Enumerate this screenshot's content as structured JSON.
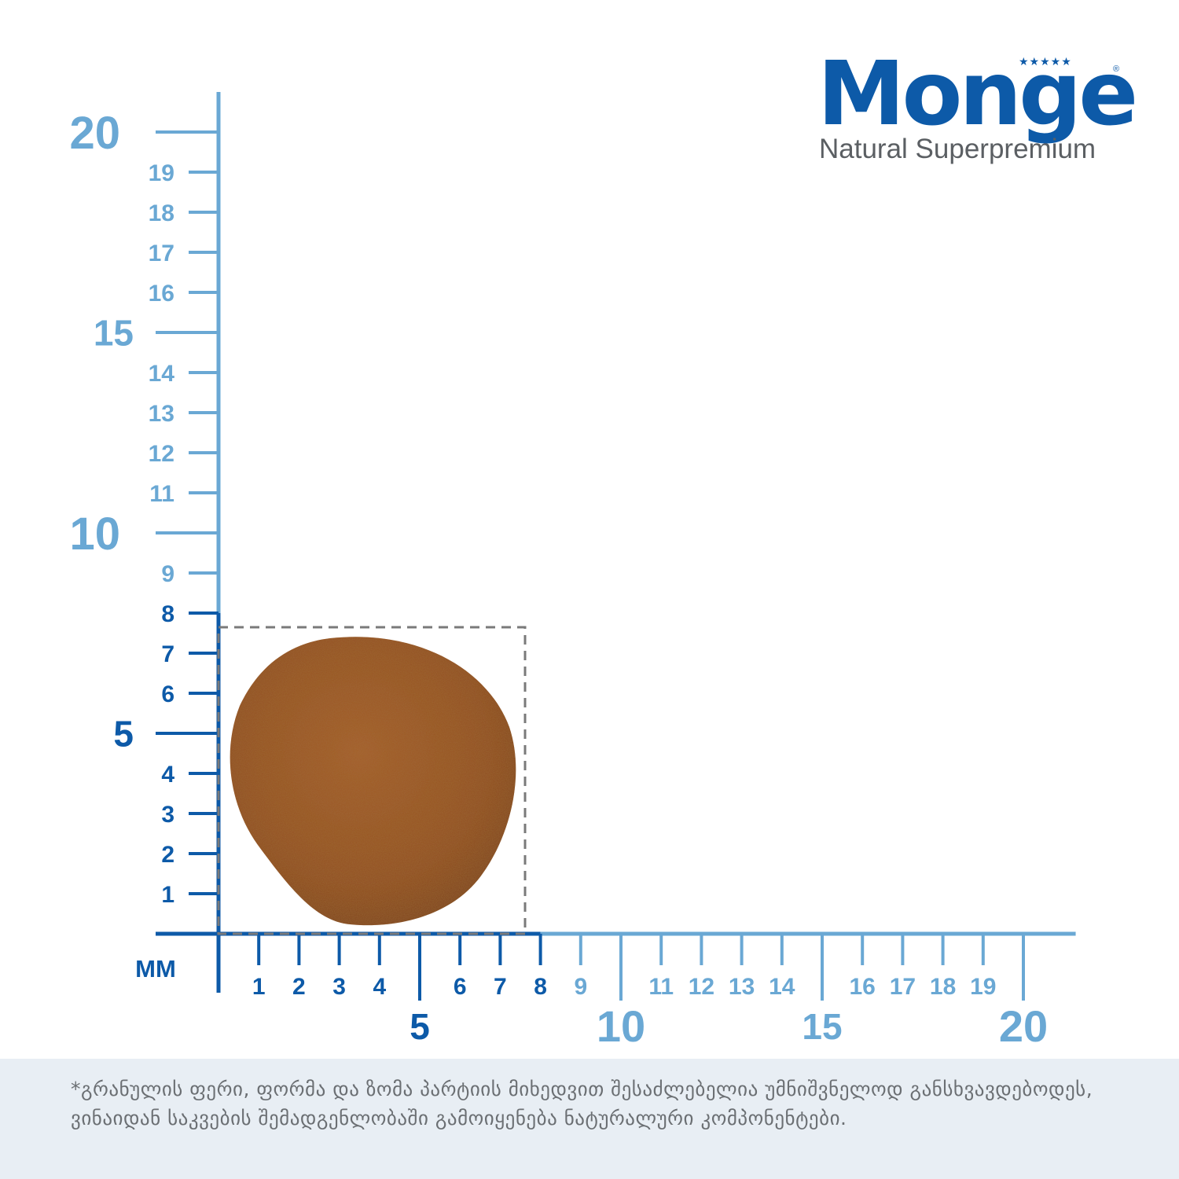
{
  "brand": {
    "name": "Monge",
    "tagline": "Natural Superpremium",
    "stars": "★★★★★",
    "registered": "®"
  },
  "ruler": {
    "unit_label": "MM",
    "x_minor_labels": [
      "1",
      "2",
      "3",
      "4",
      "6",
      "7",
      "8",
      "9",
      "11",
      "12",
      "13",
      "14",
      "16",
      "17",
      "18",
      "19"
    ],
    "x_major_labels": [
      "5",
      "10",
      "15",
      "20"
    ],
    "y_minor_labels": [
      "1",
      "2",
      "3",
      "4",
      "6",
      "7",
      "8",
      "9",
      "11",
      "12",
      "13",
      "14",
      "16",
      "17",
      "18",
      "19"
    ],
    "y_major_labels": [
      "5",
      "10",
      "15",
      "20"
    ],
    "granule_size_mm": 8,
    "colors": {
      "dark": "#0d5aa8",
      "light": "#6aa8d4",
      "granule": "#9a5424",
      "dash": "#7a7a7a"
    }
  },
  "footer": {
    "note": "*გრანულის ფერი, ფორმა და ზომა პარტიის მიხედვით შესაძლებელია უმნიშვნელოდ განსხვავდებოდეს,  ვინაიდან საკვების შემადგენლობაში გამოიყენება ნატურალური კომპონენტები."
  }
}
